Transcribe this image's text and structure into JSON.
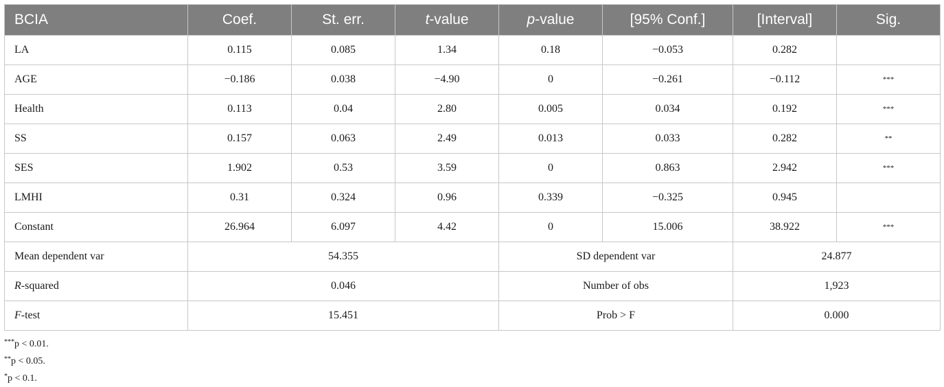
{
  "table": {
    "headers": [
      {
        "pre": "BCIA",
        "ital": "",
        "post": ""
      },
      {
        "pre": "Coef.",
        "ital": "",
        "post": ""
      },
      {
        "pre": "St. err.",
        "ital": "",
        "post": ""
      },
      {
        "pre": "",
        "ital": "t",
        "post": "-value"
      },
      {
        "pre": "",
        "ital": "p",
        "post": "-value"
      },
      {
        "pre": "[95% Conf.]",
        "ital": "",
        "post": ""
      },
      {
        "pre": "[Interval]",
        "ital": "",
        "post": ""
      },
      {
        "pre": "Sig.",
        "ital": "",
        "post": ""
      }
    ],
    "rows": [
      {
        "label": "LA",
        "coef": "0.115",
        "se": "0.085",
        "t": "1.34",
        "p": "0.18",
        "ci_low": "−0.053",
        "ci_high": "0.282",
        "sig": ""
      },
      {
        "label": "AGE",
        "coef": "−0.186",
        "se": "0.038",
        "t": "−4.90",
        "p": "0",
        "ci_low": "−0.261",
        "ci_high": "−0.112",
        "sig": "***"
      },
      {
        "label": "Health",
        "coef": "0.113",
        "se": "0.04",
        "t": "2.80",
        "p": "0.005",
        "ci_low": "0.034",
        "ci_high": "0.192",
        "sig": "***"
      },
      {
        "label": "SS",
        "coef": "0.157",
        "se": "0.063",
        "t": "2.49",
        "p": "0.013",
        "ci_low": "0.033",
        "ci_high": "0.282",
        "sig": "**"
      },
      {
        "label": "SES",
        "coef": "1.902",
        "se": "0.53",
        "t": "3.59",
        "p": "0",
        "ci_low": "0.863",
        "ci_high": "2.942",
        "sig": "***"
      },
      {
        "label": "LMHI",
        "coef": "0.31",
        "se": "0.324",
        "t": "0.96",
        "p": "0.339",
        "ci_low": "−0.325",
        "ci_high": "0.945",
        "sig": ""
      },
      {
        "label": "Constant",
        "coef": "26.964",
        "se": "6.097",
        "t": "4.42",
        "p": "0",
        "ci_low": "15.006",
        "ci_high": "38.922",
        "sig": "***"
      }
    ],
    "stats": [
      {
        "lab1_ital": "",
        "lab1_rest": "Mean dependent var",
        "val1": "54.355",
        "lab2": "SD dependent var",
        "val2": "24.877"
      },
      {
        "lab1_ital": "R",
        "lab1_rest": "-squared",
        "val1": "0.046",
        "lab2": "Number of obs",
        "val2": "1,923"
      },
      {
        "lab1_ital": "F",
        "lab1_rest": "-test",
        "val1": "15.451",
        "lab2": "Prob > F",
        "val2": "0.000"
      }
    ]
  },
  "footnotes": [
    {
      "stars": "***",
      "text": "p < 0.01."
    },
    {
      "stars": "**",
      "text": "p < 0.05."
    },
    {
      "stars": "*",
      "text": "p < 0.1."
    }
  ]
}
